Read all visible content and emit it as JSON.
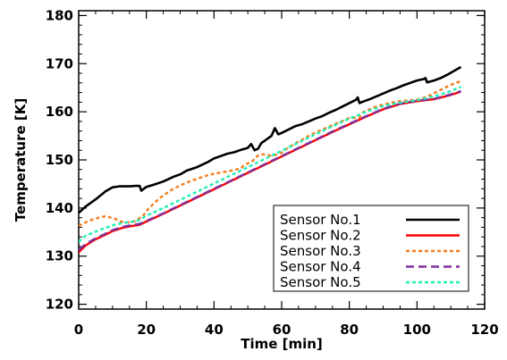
{
  "chart_data": {
    "type": "line",
    "title": "",
    "xlabel": "Time [min]",
    "ylabel": "Temperature [K]",
    "xlim": [
      0,
      120
    ],
    "ylim": [
      119,
      181
    ],
    "xticks": [
      0,
      20,
      40,
      60,
      80,
      100,
      120
    ],
    "yticks": [
      120,
      130,
      140,
      150,
      160,
      170,
      180
    ],
    "grid": false,
    "legend_position": "bottom-right",
    "series": [
      {
        "name": "Sensor No.1",
        "color": "#000000",
        "dash": "solid",
        "x": [
          0,
          2,
          5,
          8,
          10,
          12,
          15,
          17,
          18,
          18.5,
          20,
          22,
          25,
          28,
          30,
          32,
          35,
          38,
          40,
          42,
          44,
          46,
          48,
          50,
          51,
          52,
          53,
          54,
          55,
          57,
          58,
          59,
          60,
          62,
          64,
          66,
          68,
          70,
          72,
          74,
          76,
          78,
          80,
          82,
          82.5,
          83,
          84,
          86,
          88,
          90,
          92,
          94,
          96,
          98,
          100,
          102,
          102.5,
          103,
          105,
          107,
          109,
          111,
          113
        ],
        "y": [
          139,
          140.3,
          141.8,
          143.5,
          144.3,
          144.5,
          144.5,
          144.6,
          144.6,
          143.6,
          144.4,
          144.8,
          145.5,
          146.5,
          147,
          147.8,
          148.5,
          149.5,
          150.3,
          150.8,
          151.3,
          151.6,
          152.1,
          152.5,
          153.3,
          152,
          152.3,
          153.5,
          154,
          155,
          156.6,
          155.3,
          155.6,
          156.3,
          157,
          157.4,
          158,
          158.6,
          159.1,
          159.8,
          160.4,
          161.1,
          161.8,
          162.5,
          163,
          161.8,
          162.1,
          162.6,
          163.2,
          163.8,
          164.4,
          164.9,
          165.5,
          166,
          166.5,
          166.8,
          167,
          166.1,
          166.5,
          167,
          167.7,
          168.5,
          169.3
        ]
      },
      {
        "name": "Sensor No.2",
        "color": "#ff0000",
        "dash": "solid",
        "x": [
          0,
          2,
          5,
          8,
          10,
          13,
          16,
          18,
          20,
          25,
          30,
          35,
          40,
          45,
          50,
          55,
          60,
          65,
          70,
          75,
          80,
          85,
          90,
          95,
          100,
          105,
          110,
          113
        ],
        "y": [
          130.8,
          132.2,
          133.5,
          134.5,
          135.2,
          135.9,
          136.3,
          136.5,
          137.2,
          138.8,
          140.5,
          142.2,
          143.9,
          145.6,
          147.3,
          149,
          150.7,
          152.4,
          154.1,
          155.8,
          157.4,
          159,
          160.5,
          161.6,
          162.2,
          162.6,
          163.5,
          164.2
        ]
      },
      {
        "name": "Sensor No.3",
        "color": "#f57d1e",
        "dash": "dotted",
        "x": [
          0,
          2,
          4,
          6,
          8,
          9,
          10,
          11,
          12,
          13,
          14,
          15,
          16,
          17,
          18,
          19,
          20,
          22,
          24,
          26,
          28,
          30,
          32,
          34,
          36,
          38,
          40,
          42,
          44,
          46,
          48,
          49,
          50,
          51,
          52,
          53,
          54,
          55,
          56,
          57,
          58,
          60,
          62,
          64,
          66,
          68,
          70,
          72,
          74,
          76,
          78,
          80,
          82,
          83,
          84,
          86,
          88,
          90,
          92,
          94,
          96,
          98,
          100,
          102,
          104,
          106,
          108,
          110,
          113
        ],
        "y": [
          136.3,
          137,
          137.6,
          138,
          138.3,
          138.1,
          137.9,
          137.7,
          137.3,
          137.1,
          137,
          137,
          137.1,
          137.4,
          137.9,
          138.3,
          139.4,
          140.8,
          142.1,
          143.1,
          144,
          144.7,
          145.3,
          145.8,
          146.3,
          146.8,
          147.1,
          147.4,
          147.6,
          147.9,
          148.3,
          149,
          149.3,
          149.5,
          150.2,
          150.9,
          151.2,
          151.1,
          151,
          150.8,
          151,
          151.5,
          152.6,
          153.4,
          154.2,
          155,
          155.7,
          156.3,
          156.9,
          157.5,
          158.1,
          158.7,
          158.8,
          158.8,
          159.9,
          160.5,
          161.1,
          161.5,
          161.8,
          162.1,
          162.3,
          162.4,
          162.5,
          162.9,
          163.5,
          164.2,
          164.9,
          165.6,
          166.4
        ]
      },
      {
        "name": "Sensor No.4",
        "color": "#7f2f9c",
        "dash": "dashed",
        "x": [
          0,
          2,
          5,
          8,
          10,
          13,
          16,
          18,
          20,
          25,
          30,
          35,
          40,
          45,
          50,
          55,
          60,
          65,
          70,
          75,
          80,
          85,
          90,
          95,
          100,
          105,
          110,
          113
        ],
        "y": [
          131.3,
          132.5,
          133.7,
          134.7,
          135.4,
          136.1,
          136.5,
          136.7,
          137.3,
          138.9,
          140.6,
          142.3,
          144,
          145.7,
          147.4,
          149.1,
          150.8,
          152.5,
          154.2,
          155.9,
          157.5,
          159.1,
          160.6,
          161.7,
          162.3,
          162.7,
          163.6,
          164.3
        ]
      },
      {
        "name": "Sensor No.5",
        "color": "#1ef0b4",
        "dash": "dotted",
        "x": [
          0,
          2,
          5,
          8,
          10,
          13,
          16,
          18,
          20,
          25,
          30,
          35,
          40,
          45,
          50,
          55,
          60,
          65,
          70,
          75,
          80,
          85,
          90,
          95,
          100,
          105,
          110,
          113
        ],
        "y": [
          133,
          134.2,
          135.1,
          135.9,
          136.4,
          136.9,
          137.2,
          137.5,
          138.4,
          140,
          141.7,
          143.4,
          145.1,
          146.8,
          148.5,
          150.2,
          151.9,
          153.6,
          155.3,
          157,
          158.6,
          160,
          161.2,
          161.9,
          162.4,
          163.2,
          164.3,
          165.2
        ]
      }
    ]
  }
}
